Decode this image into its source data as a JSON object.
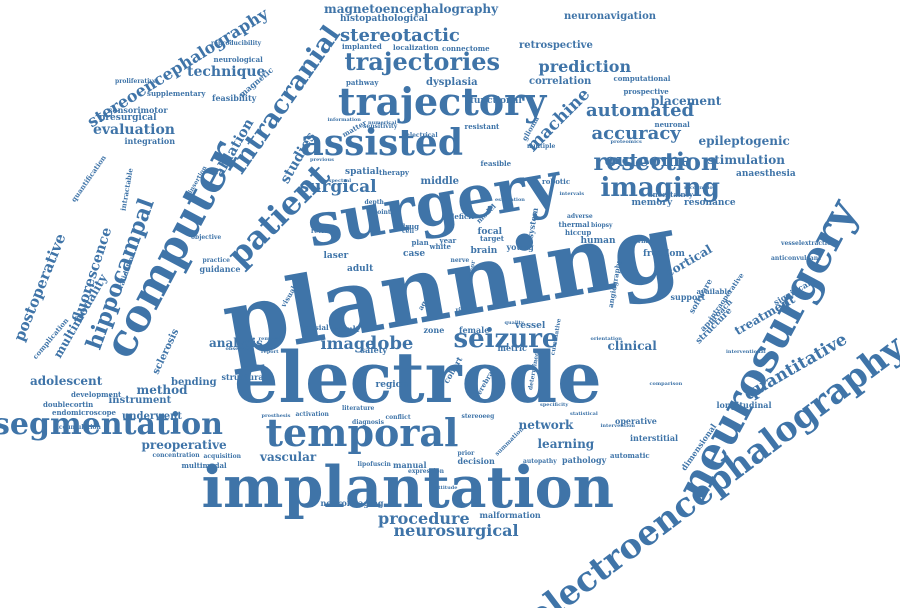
{
  "colors": {
    "word": "#3f74a8",
    "background": "#ffffff"
  },
  "words": [
    "planning",
    "electrode",
    "surgery",
    "implantation",
    "computer",
    "neurosurgery",
    "temporal",
    "electroencephalography",
    "assisted",
    "trajectory",
    "segmentation",
    "seizure",
    "patient",
    "intracranial",
    "imaging",
    "resection",
    "trajectories",
    "stereoencephalography",
    "hippocampal",
    "stereotactic",
    "accuracy",
    "outcome",
    "automated",
    "prediction",
    "quantitative",
    "machine",
    "surgical",
    "lobe",
    "image",
    "procedure",
    "neurosurgical",
    "postoperative",
    "fluorescence",
    "multimodality",
    "adolescent",
    "magnetoencephalography",
    "technique",
    "evaluation",
    "ablation",
    "studies",
    "epileptogenic",
    "stimulation",
    "placement",
    "cortical",
    "treatment",
    "network",
    "learning",
    "analysis",
    "method",
    "preoperative",
    "vascular",
    "clinical",
    "sclerosis",
    "bending",
    "instrument",
    "underwent",
    "retrospective",
    "correlation",
    "neuronavigation",
    "histopathological",
    "dysplasia",
    "functional",
    "sensorimotor",
    "presurgical",
    "feasibility",
    "anaesthesia",
    "memory",
    "resonance",
    "human",
    "freedom",
    "structure",
    "longitudinal",
    "interstitial",
    "operative",
    "pathology",
    "dimensional",
    "software",
    "approach",
    "middle",
    "spatial",
    "focal",
    "brain",
    "adult",
    "case",
    "laser",
    "region",
    "zone",
    "female",
    "vessel",
    "metric",
    "cohort",
    "structural",
    "guidance",
    "malformation",
    "neuroimaging",
    "manual",
    "decision",
    "significant",
    "support",
    "automatic",
    "angiography",
    "intraoperative",
    "available",
    "neuronal",
    "uncertainty",
    "robotic",
    "computational",
    "prospective",
    "system",
    "model",
    "cerebral",
    "young",
    "magnetic",
    "neurological",
    "supplementary",
    "integration",
    "doublecortin",
    "complication",
    "intractable",
    "validation",
    "quantification",
    "development",
    "endomicroscope",
    "multimodal",
    "concentration",
    "acquisition",
    "proliferative",
    "reproducibility",
    "implanted",
    "localization",
    "connectome",
    "pathway",
    "matter",
    "resistant",
    "therapy",
    "glioma",
    "multiple",
    "thermal",
    "hiccup",
    "adverse",
    "external",
    "vesselextraction",
    "anticonvulsant",
    "interventional",
    "comparison",
    "intervention",
    "autopathy",
    "summation",
    "target",
    "year",
    "feasible",
    "deficit",
    "result",
    "safety",
    "mesial",
    "insertion",
    "objective",
    "practice",
    "accumulation",
    "report",
    "removal",
    "observed",
    "visual",
    "review",
    "white",
    "drug",
    "plan",
    "nerve",
    "depth",
    "point",
    "aged",
    "conflict",
    "diagnosis",
    "prior",
    "stereoeeg",
    "lipofuscin",
    "expression",
    "attitude",
    "cumulative",
    "determined",
    "literature",
    "activation",
    "prosthesis",
    "statistical",
    "orientation",
    "specificity",
    "proteomics",
    "recognition",
    "biopsy",
    "estimation",
    "quality",
    "cell",
    "risk",
    "electrical",
    "sensitivity",
    "information",
    "intervals",
    "numerical",
    "previous",
    "spectral",
    "tumor"
  ]
}
